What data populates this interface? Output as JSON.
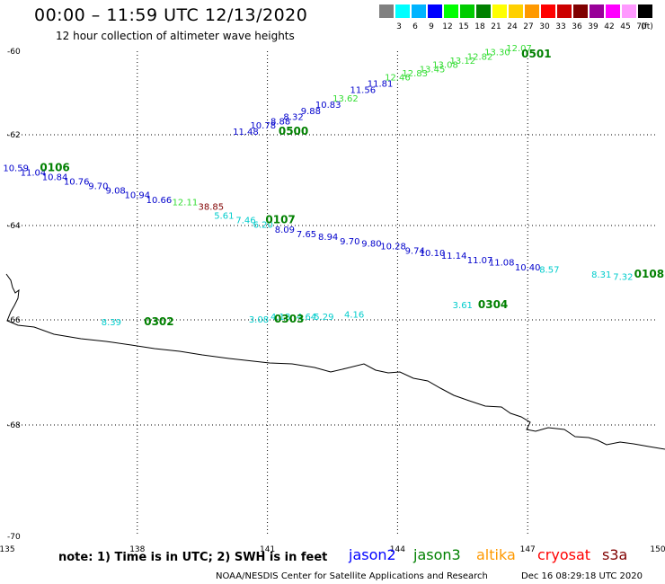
{
  "header": {
    "title": "00:00 – 11:59 UTC 12/13/2020",
    "subtitle": "12 hour collection of altimeter wave heights"
  },
  "legend": {
    "unit_label": "(ft)",
    "bins": [
      {
        "label": "3",
        "color": "#808080"
      },
      {
        "label": "6",
        "color": "#00ffff"
      },
      {
        "label": "9",
        "color": "#00b4ff"
      },
      {
        "label": "12",
        "color": "#0000ff"
      },
      {
        "label": "15",
        "color": "#00ff00"
      },
      {
        "label": "18",
        "color": "#00cc00"
      },
      {
        "label": "21",
        "color": "#008000"
      },
      {
        "label": "24",
        "color": "#ffff00"
      },
      {
        "label": "27",
        "color": "#ffd000"
      },
      {
        "label": "30",
        "color": "#ff9900"
      },
      {
        "label": "33",
        "color": "#ff0000"
      },
      {
        "label": "36",
        "color": "#cc0000"
      },
      {
        "label": "39",
        "color": "#800000"
      },
      {
        "label": "42",
        "color": "#990099"
      },
      {
        "label": "45",
        "color": "#ff00ff"
      },
      {
        "label": "70",
        "color": "#ff99ff"
      },
      {
        "label": "",
        "color": "#000000"
      }
    ]
  },
  "map": {
    "lat_ticks": [
      "-60",
      "-62",
      "-64",
      "-66",
      "-68",
      "-70"
    ],
    "lon_ticks": [
      "135",
      "138",
      "141",
      "144",
      "147",
      "150"
    ],
    "colors": {
      "jason2": "#0000cc",
      "jason3": "#008000",
      "altika": "#ff9900",
      "cryosat": "#ff0000",
      "s3a": "#800000",
      "cyan": "#00cccc",
      "lightgreen": "#33dd33",
      "darkred": "#800000"
    },
    "observations": [
      {
        "t": "13.84",
        "lon": 147.3,
        "lat": -59.9,
        "c": "lightgreen"
      },
      {
        "t": "12.07",
        "lon": 146.8,
        "lat": -60.0,
        "c": "lightgreen"
      },
      {
        "t": "13.30",
        "lon": 146.3,
        "lat": -60.1,
        "c": "lightgreen"
      },
      {
        "t": "12.82",
        "lon": 145.9,
        "lat": -60.2,
        "c": "lightgreen"
      },
      {
        "t": "13.12",
        "lon": 145.5,
        "lat": -60.3,
        "c": "lightgreen"
      },
      {
        "t": "13.08",
        "lon": 145.1,
        "lat": -60.4,
        "c": "lightgreen"
      },
      {
        "t": "13.45",
        "lon": 144.8,
        "lat": -60.5,
        "c": "lightgreen"
      },
      {
        "t": "12.83",
        "lon": 144.4,
        "lat": -60.6,
        "c": "lightgreen"
      },
      {
        "t": "12.46",
        "lon": 144.0,
        "lat": -60.7,
        "c": "lightgreen"
      },
      {
        "t": "11.81",
        "lon": 143.6,
        "lat": -60.85,
        "c": "jason2"
      },
      {
        "t": "11.56",
        "lon": 143.2,
        "lat": -61.0,
        "c": "jason2"
      },
      {
        "t": "13.62",
        "lon": 142.8,
        "lat": -61.2,
        "c": "lightgreen"
      },
      {
        "t": "10.83",
        "lon": 142.4,
        "lat": -61.35,
        "c": "jason2"
      },
      {
        "t": "9.88",
        "lon": 142.0,
        "lat": -61.5,
        "c": "jason2"
      },
      {
        "t": "8.32",
        "lon": 141.6,
        "lat": -61.65,
        "c": "jason2"
      },
      {
        "t": "8.88",
        "lon": 141.3,
        "lat": -61.75,
        "c": "jason2"
      },
      {
        "t": "10.78",
        "lon": 140.9,
        "lat": -61.85,
        "c": "jason2"
      },
      {
        "t": "11.48",
        "lon": 140.5,
        "lat": -62.0,
        "c": "jason2"
      },
      {
        "t": "10.59",
        "lon": 135.2,
        "lat": -62.8,
        "c": "jason2"
      },
      {
        "t": "11.04",
        "lon": 135.6,
        "lat": -62.9,
        "c": "jason2"
      },
      {
        "t": "10.84",
        "lon": 136.1,
        "lat": -63.0,
        "c": "jason2"
      },
      {
        "t": "10.76",
        "lon": 136.6,
        "lat": -63.1,
        "c": "jason2"
      },
      {
        "t": "9.70",
        "lon": 137.1,
        "lat": -63.2,
        "c": "jason2"
      },
      {
        "t": "9.08",
        "lon": 137.5,
        "lat": -63.3,
        "c": "jason2"
      },
      {
        "t": "10.94",
        "lon": 138.0,
        "lat": -63.4,
        "c": "jason2"
      },
      {
        "t": "10.66",
        "lon": 138.5,
        "lat": -63.5,
        "c": "jason2"
      },
      {
        "t": "12.11",
        "lon": 139.1,
        "lat": -63.55,
        "c": "lightgreen"
      },
      {
        "t": "38.85",
        "lon": 139.7,
        "lat": -63.65,
        "c": "darkred"
      },
      {
        "t": "5.61",
        "lon": 140.0,
        "lat": -63.85,
        "c": "cyan"
      },
      {
        "t": "7.46",
        "lon": 140.5,
        "lat": -63.95,
        "c": "cyan"
      },
      {
        "t": "6.20",
        "lon": 140.9,
        "lat": -64.05,
        "c": "cyan"
      },
      {
        "t": "8.09",
        "lon": 141.4,
        "lat": -64.15,
        "c": "jason2"
      },
      {
        "t": "7.65",
        "lon": 141.9,
        "lat": -64.25,
        "c": "jason2"
      },
      {
        "t": "8.94",
        "lon": 142.4,
        "lat": -64.3,
        "c": "jason2"
      },
      {
        "t": "9.70",
        "lon": 142.9,
        "lat": -64.4,
        "c": "jason2"
      },
      {
        "t": "9.80",
        "lon": 143.4,
        "lat": -64.45,
        "c": "jason2"
      },
      {
        "t": "10.28",
        "lon": 143.9,
        "lat": -64.5,
        "c": "jason2"
      },
      {
        "t": "9.74",
        "lon": 144.4,
        "lat": -64.6,
        "c": "jason2"
      },
      {
        "t": "10.10",
        "lon": 144.8,
        "lat": -64.65,
        "c": "jason2"
      },
      {
        "t": "11.14",
        "lon": 145.3,
        "lat": -64.7,
        "c": "jason2"
      },
      {
        "t": "11.07",
        "lon": 145.9,
        "lat": -64.8,
        "c": "jason2"
      },
      {
        "t": "11.08",
        "lon": 146.4,
        "lat": -64.85,
        "c": "jason2"
      },
      {
        "t": "10.40",
        "lon": 147.0,
        "lat": -64.95,
        "c": "jason2"
      },
      {
        "t": "8.57",
        "lon": 147.5,
        "lat": -65.0,
        "c": "cyan"
      },
      {
        "t": "8.31",
        "lon": 148.7,
        "lat": -65.1,
        "c": "cyan"
      },
      {
        "t": "7.32",
        "lon": 149.2,
        "lat": -65.15,
        "c": "cyan"
      },
      {
        "t": "8.39",
        "lon": 137.4,
        "lat": -66.1,
        "c": "cyan"
      },
      {
        "t": "3.08",
        "lon": 140.8,
        "lat": -66.05,
        "c": "cyan"
      },
      {
        "t": "4.18",
        "lon": 141.3,
        "lat": -66.0,
        "c": "cyan"
      },
      {
        "t": "4.64",
        "lon": 141.9,
        "lat": -66.0,
        "c": "cyan"
      },
      {
        "t": "5.29",
        "lon": 142.3,
        "lat": -66.0,
        "c": "cyan"
      },
      {
        "t": "4.16",
        "lon": 143.0,
        "lat": -65.95,
        "c": "cyan"
      },
      {
        "t": "3.61",
        "lon": 145.5,
        "lat": -65.75,
        "c": "cyan"
      }
    ],
    "passes": [
      {
        "t": "0501",
        "lon": 147.2,
        "lat": -60.15
      },
      {
        "t": "0500",
        "lon": 141.6,
        "lat": -62.0
      },
      {
        "t": "0106",
        "lon": 136.1,
        "lat": -62.8
      },
      {
        "t": "0107",
        "lon": 141.3,
        "lat": -63.95
      },
      {
        "t": "0108",
        "lon": 149.8,
        "lat": -65.1
      },
      {
        "t": "0302",
        "lon": 138.5,
        "lat": -66.1
      },
      {
        "t": "0304",
        "lon": 146.2,
        "lat": -65.75
      },
      {
        "t": "0303",
        "lon": 141.5,
        "lat": -66.05
      }
    ]
  },
  "footer": {
    "note": "note:  1) Time is in UTC;  2) SWH is in feet",
    "satellites": [
      {
        "name": "jason2",
        "color": "#0000ff"
      },
      {
        "name": "jason3",
        "color": "#008000"
      },
      {
        "name": "altika",
        "color": "#ff9900"
      },
      {
        "name": "cryosat",
        "color": "#ff0000"
      },
      {
        "name": "s3a",
        "color": "#800000"
      }
    ],
    "credit": "NOAA/NESDIS Center for Satellite Applications and Research",
    "stamp": "Dec 16 08:29:18 UTC 2020"
  }
}
